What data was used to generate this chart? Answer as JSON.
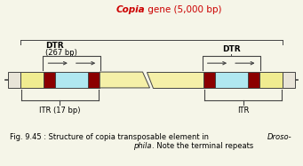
{
  "title_italic": "Copia",
  "title_rest": " gene (5,000 bp)",
  "title_color": "#cc0000",
  "title_fontsize": 7.5,
  "caption_line1": "Fig. 9.45 : Structure of copia transposable element in ",
  "caption_droso": "Droso-",
  "caption_line2_italic": "phila",
  "caption_line2_rest": ". Note the terminal repeats",
  "caption_fontsize": 6.0,
  "bg_color": "#f5f5e8",
  "dtr_label_left": "DTR",
  "dtr_label_left2": "(267 bp)",
  "dtr_label_right": "DTR",
  "itr_label_left": "ITR (17 bp)",
  "itr_label_right": "ITR",
  "color_yellow": "#f0ec90",
  "color_dark_red": "#8b0000",
  "color_cyan": "#b0e8f0",
  "color_mid_yellow": "#f5f0a8",
  "color_white_cap": "#e8e4d8",
  "ec": "#444444"
}
